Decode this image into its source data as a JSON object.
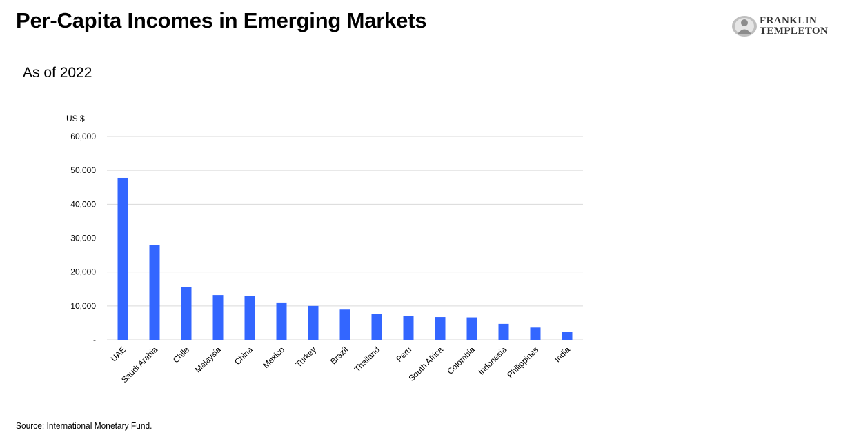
{
  "header": {
    "title": "Per-Capita Incomes in Emerging Markets",
    "subtitle": "As of 2022",
    "logo_line1": "FRANKLIN",
    "logo_line2": "TEMPLETON"
  },
  "footer": {
    "source": "Source: International Monetary Fund."
  },
  "colors": {
    "bar": "#3366ff",
    "gridline": "#d9d9d9"
  },
  "chart_data": {
    "type": "bar",
    "title": "",
    "ylabel": "US $",
    "xlabel": "",
    "ylim": [
      0,
      60000
    ],
    "yticks": [
      0,
      10000,
      20000,
      30000,
      40000,
      50000,
      60000
    ],
    "ytick_labels": [
      "-",
      "10,000",
      "20,000",
      "30,000",
      "40,000",
      "50,000",
      "60,000"
    ],
    "grid": true,
    "categories": [
      "UAE",
      "Saudi Arabia",
      "Chile",
      "Malaysia",
      "China",
      "Mexico",
      "Turkey",
      "Brazil",
      "Thailand",
      "Peru",
      "South Africa",
      "Colombia",
      "Indonesia",
      "Philippines",
      "India"
    ],
    "values": [
      47800,
      28000,
      15600,
      13200,
      13000,
      11000,
      10000,
      8900,
      7700,
      7100,
      6700,
      6600,
      4700,
      3600,
      2400
    ]
  }
}
